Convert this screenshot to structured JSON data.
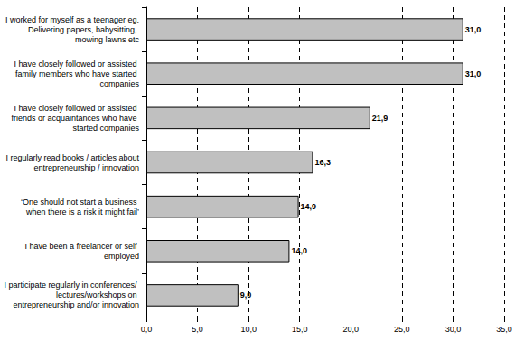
{
  "chart_data": {
    "type": "bar",
    "orientation": "horizontal",
    "categories": [
      "I worked for myself as a teenager eg. Delivering papers, babysitting, mowing lawns etc",
      "I have closely followed or assisted family members who have started companies",
      "I have closely followed or assisted friends or acquaintances who have started companies",
      "I regularly read books / articles about entrepreneurship / innovation",
      "‘One should not start a business when there is a risk it might fail’",
      "I have been a freelancer or self employed",
      "I participate regularly in conferences/ lectures/workshops on entrepreneurship and/or innovation"
    ],
    "values": [
      31.0,
      31.0,
      21.9,
      16.3,
      14.9,
      14.0,
      9.0
    ],
    "value_labels": [
      "31,0",
      "31,0",
      "21,9",
      "16,3",
      "14,9",
      "14,0",
      "9,0"
    ],
    "color": "#c0c0c0",
    "xlim": [
      0,
      35
    ],
    "xticks": [
      {
        "value": 0,
        "label": "0,0"
      },
      {
        "value": 5,
        "label": "5,0"
      },
      {
        "value": 10,
        "label": "10,0"
      },
      {
        "value": 15,
        "label": "15,0"
      },
      {
        "value": 20,
        "label": "20,0"
      },
      {
        "value": 25,
        "label": "25,0"
      },
      {
        "value": 30,
        "label": "30,0"
      },
      {
        "value": 35,
        "label": "35,0"
      }
    ],
    "grid": true,
    "data_labels": true
  }
}
